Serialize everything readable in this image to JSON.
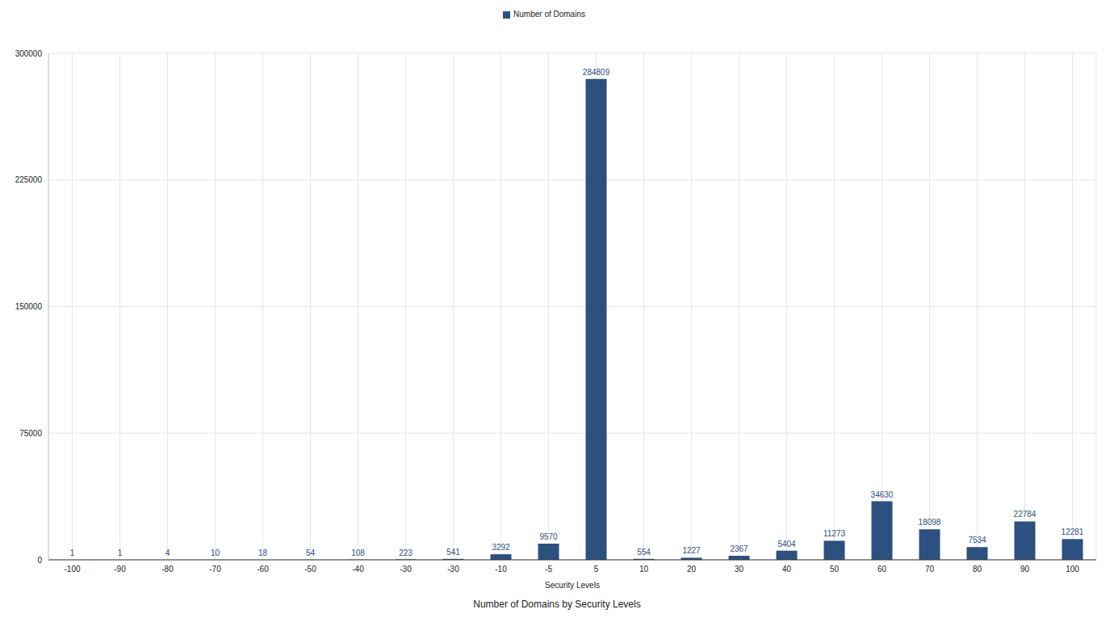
{
  "chart_data": {
    "type": "bar",
    "title": "Number of Domains by Security Levels",
    "x_label": "Security Levels",
    "categories": [
      "-100",
      "-90",
      "-80",
      "-70",
      "-60",
      "-50",
      "-40",
      "-30",
      "-30",
      "-10",
      "-5",
      "5",
      "10",
      "20",
      "30",
      "40",
      "50",
      "60",
      "70",
      "80",
      "90",
      "100"
    ],
    "series": [
      {
        "name": "Number of Domains",
        "color": "#2c5080",
        "values": [
          1,
          1,
          4,
          10,
          18,
          54,
          108,
          223,
          541,
          3292,
          9570,
          284809,
          554,
          1227,
          2367,
          5404,
          11273,
          34630,
          18098,
          7534,
          22784,
          12281
        ]
      }
    ],
    "ylim": [
      0,
      300000
    ],
    "yticks": [
      0,
      75000,
      150000,
      225000,
      300000
    ],
    "grid": true,
    "legend": "top",
    "data_labels": true
  }
}
